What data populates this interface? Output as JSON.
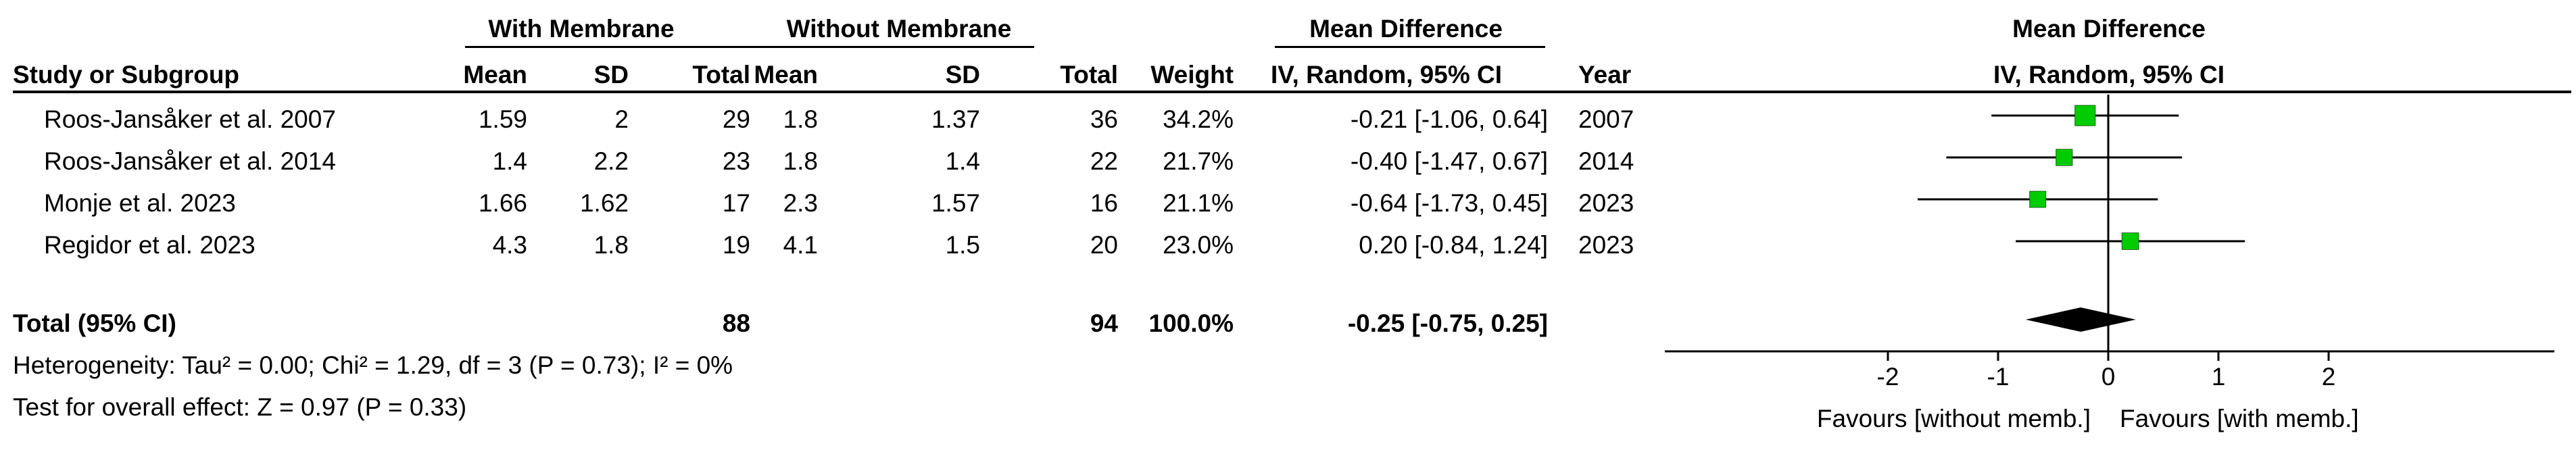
{
  "table": {
    "group_headers": {
      "with": "With Membrane",
      "without": "Without Membrane",
      "md": "Mean Difference",
      "md_plot": "Mean Difference"
    },
    "columns": {
      "study": "Study or Subgroup",
      "mean_e": "Mean",
      "sd_e": "SD",
      "total_e": "Total",
      "mean_c": "Mean",
      "sd_c": "SD",
      "total_c": "Total",
      "weight": "Weight",
      "md": "IV, Random, 95% CI",
      "year": "Year",
      "md_plot": "IV, Random, 95% CI"
    },
    "rows": [
      {
        "study": "Roos-Jansåker et al. 2007",
        "mean_e": "1.59",
        "sd_e": "2",
        "total_e": "29",
        "mean_c": "1.8",
        "sd_c": "1.37",
        "total_c": "36",
        "weight": "34.2%",
        "md": "-0.21 [-1.06, 0.64]",
        "year": "2007"
      },
      {
        "study": "Roos-Jansåker et al. 2014",
        "mean_e": "1.4",
        "sd_e": "2.2",
        "total_e": "23",
        "mean_c": "1.8",
        "sd_c": "1.4",
        "total_c": "22",
        "weight": "21.7%",
        "md": "-0.40 [-1.47, 0.67]",
        "year": "2014"
      },
      {
        "study": "Monje et al. 2023",
        "mean_e": "1.66",
        "sd_e": "1.62",
        "total_e": "17",
        "mean_c": "2.3",
        "sd_c": "1.57",
        "total_c": "16",
        "weight": "21.1%",
        "md": "-0.64 [-1.73, 0.45]",
        "year": "2023"
      },
      {
        "study": "Regidor et al. 2023",
        "mean_e": "4.3",
        "sd_e": "1.8",
        "total_e": "19",
        "mean_c": "4.1",
        "sd_c": "1.5",
        "total_c": "20",
        "weight": "23.0%",
        "md": "0.20 [-0.84, 1.24]",
        "year": "2023"
      }
    ],
    "total": {
      "label": "Total (95% CI)",
      "total_e": "88",
      "total_c": "94",
      "weight": "100.0%",
      "md": "-0.25 [-0.75, 0.25]"
    },
    "heterogeneity": "Heterogeneity: Tau² = 0.00; Chi² = 1.29, df = 3 (P = 0.73); I² = 0%",
    "overall_effect": "Test for overall effect: Z = 0.97 (P = 0.33)"
  },
  "chart_data": {
    "type": "forest",
    "xlim": [
      -2.8,
      2.8
    ],
    "xticks": [
      -2,
      -1,
      0,
      1,
      2
    ],
    "xtick_labels": [
      "-2",
      "-1",
      "0",
      "1",
      "2"
    ],
    "xlabel_left": "Favours [without memb.]",
    "xlabel_right": "Favours [with memb.]",
    "marker_color": "#00cc00",
    "studies": [
      {
        "name": "Roos-Jansåker et al. 2007",
        "estimate": -0.21,
        "lower": -1.06,
        "upper": 0.64,
        "weight": 34.2
      },
      {
        "name": "Roos-Jansåker et al. 2014",
        "estimate": -0.4,
        "lower": -1.47,
        "upper": 0.67,
        "weight": 21.7
      },
      {
        "name": "Monje et al. 2023",
        "estimate": -0.64,
        "lower": -1.73,
        "upper": 0.45,
        "weight": 21.1
      },
      {
        "name": "Regidor et al. 2023",
        "estimate": 0.2,
        "lower": -0.84,
        "upper": 1.24,
        "weight": 23.0
      }
    ],
    "pooled": {
      "estimate": -0.25,
      "lower": -0.75,
      "upper": 0.25
    }
  }
}
